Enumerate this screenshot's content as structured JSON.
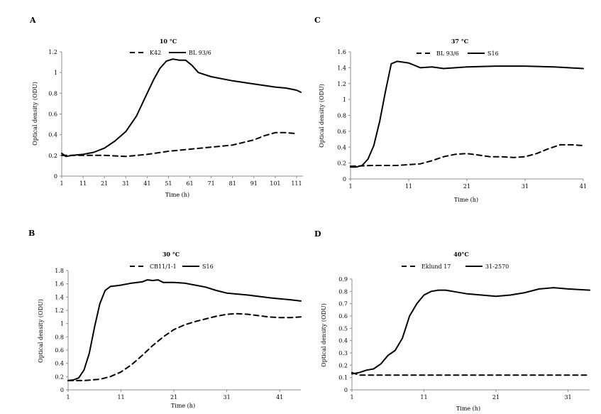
{
  "chart_data": [
    {
      "panel": "A",
      "type": "line",
      "title": "10 °C",
      "xlabel": "Time (h)",
      "ylabel": "Optical density (ODU)",
      "xlim": [
        1,
        114
      ],
      "ylim": [
        0,
        1.2
      ],
      "xticks": [
        1,
        11,
        21,
        31,
        41,
        51,
        61,
        71,
        81,
        91,
        101,
        111
      ],
      "yticks": [
        0,
        0.2,
        0.4,
        0.6,
        0.8,
        1,
        1.2
      ],
      "ytick_labels": [
        "0",
        "0.2",
        "0.4",
        "0.6",
        "0.8",
        "1",
        "1.2"
      ],
      "legend_position": "top",
      "series": [
        {
          "name": "K42",
          "style": "dashed",
          "x": [
            1,
            11,
            21,
            31,
            41,
            51,
            61,
            71,
            81,
            91,
            96,
            101,
            106,
            111
          ],
          "y": [
            0.2,
            0.2,
            0.2,
            0.19,
            0.21,
            0.24,
            0.26,
            0.28,
            0.3,
            0.35,
            0.39,
            0.42,
            0.42,
            0.41
          ]
        },
        {
          "name": "BL 93/6",
          "style": "solid",
          "x": [
            1,
            3,
            6,
            11,
            16,
            21,
            26,
            31,
            36,
            41,
            44,
            47,
            50,
            53,
            56,
            59,
            62,
            65,
            71,
            81,
            91,
            101,
            106,
            111,
            113
          ],
          "y": [
            0.22,
            0.19,
            0.2,
            0.21,
            0.23,
            0.27,
            0.34,
            0.43,
            0.58,
            0.8,
            0.93,
            1.04,
            1.11,
            1.13,
            1.12,
            1.12,
            1.07,
            1.0,
            0.96,
            0.92,
            0.89,
            0.86,
            0.85,
            0.83,
            0.81
          ]
        }
      ]
    },
    {
      "panel": "C",
      "type": "line",
      "title": "37 °C",
      "xlabel": "Time (h)",
      "ylabel": "Optical density (ODU)",
      "xlim": [
        1,
        41
      ],
      "ylim": [
        0,
        1.6
      ],
      "xticks": [
        1,
        11,
        21,
        31,
        41
      ],
      "yticks": [
        0,
        0.2,
        0.4,
        0.6,
        0.8,
        1,
        1.2,
        1.4,
        1.6
      ],
      "ytick_labels": [
        "0",
        "0.2",
        "0.4",
        "0.6",
        "0.8",
        "1",
        "1.2",
        "1.4",
        "1.6"
      ],
      "legend_position": "top",
      "series": [
        {
          "name": "BL 93/6",
          "style": "dashed",
          "x": [
            1,
            5,
            9,
            13,
            15,
            17,
            19,
            21,
            23,
            25,
            27,
            29,
            31,
            33,
            35,
            37,
            39,
            41
          ],
          "y": [
            0.16,
            0.17,
            0.17,
            0.19,
            0.23,
            0.28,
            0.31,
            0.32,
            0.3,
            0.28,
            0.28,
            0.27,
            0.28,
            0.32,
            0.38,
            0.43,
            0.43,
            0.42
          ]
        },
        {
          "name": "S16",
          "style": "solid",
          "x": [
            1,
            2,
            3,
            4,
            5,
            6,
            7,
            8,
            9,
            10,
            11,
            12,
            13,
            15,
            17,
            19,
            21,
            26,
            31,
            36,
            41
          ],
          "y": [
            0.15,
            0.15,
            0.17,
            0.25,
            0.42,
            0.72,
            1.1,
            1.45,
            1.48,
            1.47,
            1.46,
            1.43,
            1.4,
            1.41,
            1.39,
            1.4,
            1.41,
            1.42,
            1.42,
            1.41,
            1.39
          ]
        }
      ]
    },
    {
      "panel": "B",
      "type": "line",
      "title": "30 °C",
      "xlabel": "Time (h)",
      "ylabel": "Optical density (ODU)",
      "xlim": [
        1,
        45
      ],
      "ylim": [
        0,
        1.8
      ],
      "xticks": [
        1,
        11,
        21,
        31,
        41
      ],
      "yticks": [
        0,
        0.2,
        0.4,
        0.6,
        0.8,
        1,
        1.2,
        1.4,
        1.6,
        1.8
      ],
      "ytick_labels": [
        "0",
        "0.2",
        "0.4",
        "0.6",
        "0.8",
        "1",
        "1.2",
        "1.4",
        "1.6",
        "1.8"
      ],
      "legend_position": "top",
      "series": [
        {
          "name": "CB11/1-1",
          "style": "dashed",
          "x": [
            1,
            4,
            7,
            9,
            11,
            13,
            15,
            17,
            19,
            21,
            23,
            25,
            27,
            29,
            31,
            33,
            35,
            37,
            39,
            41,
            43,
            45
          ],
          "y": [
            0.14,
            0.14,
            0.16,
            0.2,
            0.27,
            0.38,
            0.52,
            0.67,
            0.8,
            0.91,
            0.98,
            1.03,
            1.07,
            1.11,
            1.14,
            1.15,
            1.14,
            1.12,
            1.1,
            1.09,
            1.09,
            1.1
          ]
        },
        {
          "name": "S16",
          "style": "solid",
          "x": [
            1,
            2,
            3,
            4,
            5,
            6,
            7,
            8,
            9,
            10,
            11,
            13,
            15,
            16,
            17,
            18,
            19,
            21,
            23,
            25,
            27,
            29,
            31,
            35,
            39,
            43,
            45
          ],
          "y": [
            0.14,
            0.15,
            0.18,
            0.3,
            0.55,
            0.95,
            1.3,
            1.5,
            1.56,
            1.57,
            1.58,
            1.61,
            1.63,
            1.66,
            1.65,
            1.66,
            1.62,
            1.62,
            1.61,
            1.58,
            1.55,
            1.5,
            1.46,
            1.43,
            1.39,
            1.36,
            1.34
          ]
        }
      ]
    },
    {
      "panel": "D",
      "type": "line",
      "title": "40°C",
      "xlabel": "Time (h)",
      "ylabel": "Optical density (ODU)",
      "xlim": [
        1,
        34
      ],
      "ylim": [
        0,
        0.9
      ],
      "xticks": [
        1,
        11,
        21,
        31
      ],
      "yticks": [
        0,
        0.1,
        0.2,
        0.3,
        0.4,
        0.5,
        0.6,
        0.7,
        0.8,
        0.9
      ],
      "ytick_labels": [
        "0",
        "0.1",
        "0.2",
        "0.3",
        "0.4",
        "0.5",
        "0.6",
        "0.7",
        "0.8",
        "0.9"
      ],
      "legend_position": "top",
      "series": [
        {
          "name": "Eklund 17",
          "style": "dashed",
          "x": [
            1,
            2,
            5,
            10,
            15,
            20,
            25,
            30,
            34
          ],
          "y": [
            0.14,
            0.12,
            0.12,
            0.12,
            0.12,
            0.12,
            0.12,
            0.12,
            0.12
          ]
        },
        {
          "name": "31-2570",
          "style": "solid",
          "x": [
            1,
            2,
            3,
            4,
            5,
            6,
            7,
            8,
            9,
            10,
            11,
            12,
            13,
            14,
            15,
            17,
            19,
            21,
            23,
            25,
            27,
            29,
            31,
            34
          ],
          "y": [
            0.13,
            0.14,
            0.16,
            0.17,
            0.21,
            0.28,
            0.32,
            0.42,
            0.6,
            0.7,
            0.77,
            0.8,
            0.81,
            0.81,
            0.8,
            0.78,
            0.77,
            0.76,
            0.77,
            0.79,
            0.82,
            0.83,
            0.82,
            0.81
          ]
        }
      ]
    }
  ]
}
